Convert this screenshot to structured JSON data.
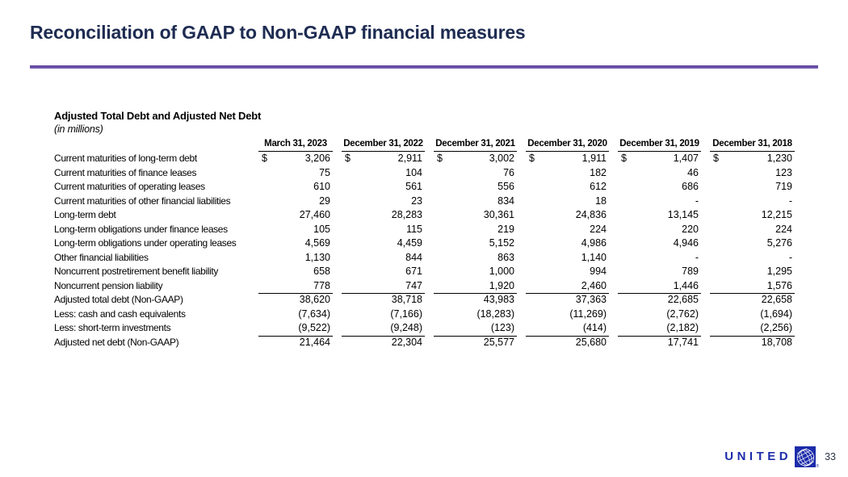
{
  "slide": {
    "title": "Reconciliation of GAAP to Non-GAAP financial measures",
    "title_color": "#1e2c52",
    "accent_color": "#6a4fa6",
    "page_number": "33"
  },
  "logo": {
    "wordmark": "UNITED",
    "brand_color": "#1d2caa",
    "icon": "globe-icon"
  },
  "table": {
    "section_title": "Adjusted Total Debt and Adjusted Net Debt",
    "units_note": "(in millions)",
    "currency_symbol": "$",
    "columns": [
      "March 31, 2023",
      "December 31, 2022",
      "December 31, 2021",
      "December 31, 2020",
      "December 31, 2019",
      "December 31, 2018"
    ],
    "rows": [
      {
        "label": "Current maturities of long-term debt",
        "dollar": true,
        "values": [
          "3,206",
          "2,911",
          "3,002",
          "1,911",
          "1,407",
          "1,230"
        ]
      },
      {
        "label": "Current maturities of finance leases",
        "values": [
          "75",
          "104",
          "76",
          "182",
          "46",
          "123"
        ]
      },
      {
        "label": "Current maturities of operating leases",
        "values": [
          "610",
          "561",
          "556",
          "612",
          "686",
          "719"
        ]
      },
      {
        "label": "Current maturities of other financial liabilities",
        "values": [
          "29",
          "23",
          "834",
          "18",
          "-",
          "-"
        ]
      },
      {
        "label": "Long-term debt",
        "values": [
          "27,460",
          "28,283",
          "30,361",
          "24,836",
          "13,145",
          "12,215"
        ]
      },
      {
        "label": "Long-term obligations under finance leases",
        "values": [
          "105",
          "115",
          "219",
          "224",
          "220",
          "224"
        ]
      },
      {
        "label": "Long-term obligations under operating leases",
        "values": [
          "4,569",
          "4,459",
          "5,152",
          "4,986",
          "4,946",
          "5,276"
        ]
      },
      {
        "label": "Other financial liabilities",
        "values": [
          "1,130",
          "844",
          "863",
          "1,140",
          "-",
          "-"
        ]
      },
      {
        "label": "Noncurrent postretirement benefit liability",
        "values": [
          "658",
          "671",
          "1,000",
          "994",
          "789",
          "1,295"
        ]
      },
      {
        "label": "Noncurrent pension liability",
        "rule_below": true,
        "values": [
          "778",
          "747",
          "1,920",
          "2,460",
          "1,446",
          "1,576"
        ]
      },
      {
        "label": "Adjusted total debt (Non-GAAP)",
        "values": [
          "38,620",
          "38,718",
          "43,983",
          "37,363",
          "22,685",
          "22,658"
        ]
      },
      {
        "label": "Less: cash and cash equivalents",
        "values": [
          "(7,634)",
          "(7,166)",
          "(18,283)",
          "(11,269)",
          "(2,762)",
          "(1,694)"
        ]
      },
      {
        "label": "Less: short-term investments",
        "rule_below": true,
        "values": [
          "(9,522)",
          "(9,248)",
          "(123)",
          "(414)",
          "(2,182)",
          "(2,256)"
        ]
      },
      {
        "label": "Adjusted net debt (Non-GAAP)",
        "values": [
          "21,464",
          "22,304",
          "25,577",
          "25,680",
          "17,741",
          "18,708"
        ]
      }
    ]
  }
}
